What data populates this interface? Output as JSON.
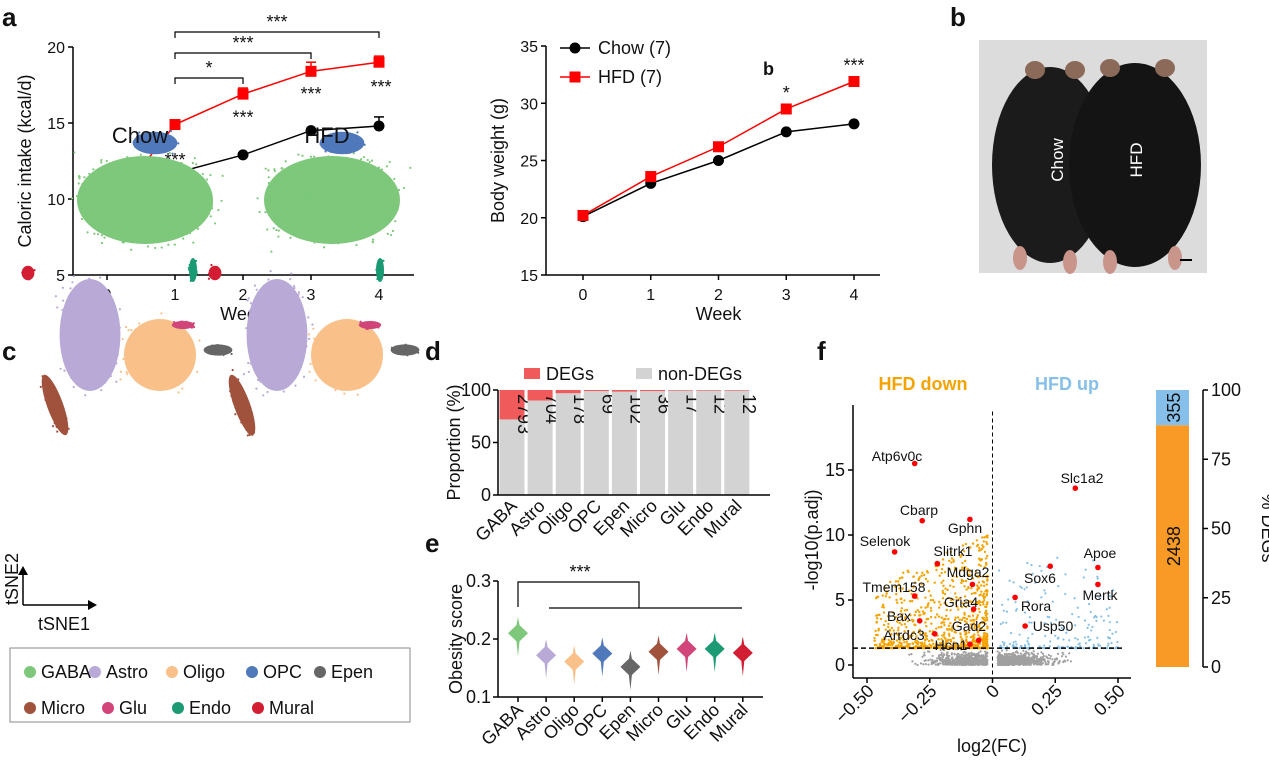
{
  "panel_labels": {
    "a": "a",
    "b": "b",
    "c": "c",
    "d": "d",
    "e": "e",
    "f": "f",
    "b_inset": "b"
  },
  "chart_data": [
    {
      "id": "caloric",
      "type": "line",
      "xlabel": "Week",
      "ylabel": "Caloric intake (kcal/d)",
      "x": [
        0,
        1,
        2,
        3,
        4
      ],
      "xticks": [
        "0",
        "1",
        "2",
        "3",
        "4"
      ],
      "ylim": [
        5,
        20
      ],
      "yticks": [
        "5",
        "10",
        "15",
        "20"
      ],
      "series": [
        {
          "name": "Chow",
          "color": "#000000",
          "marker": "circle",
          "values": [
            9.1,
            11.7,
            12.9,
            14.5,
            14.8
          ],
          "err": [
            0.1,
            0.1,
            0.1,
            0.15,
            0.6
          ]
        },
        {
          "name": "HFD",
          "color": "#ff0000",
          "marker": "square",
          "values": [
            9.2,
            14.9,
            16.9,
            18.4,
            19.0
          ],
          "err": [
            0.1,
            0.1,
            0.4,
            0.6,
            0.4
          ]
        }
      ],
      "point_stars": [
        "",
        "***",
        "***",
        "***",
        "***"
      ],
      "brackets": [
        {
          "from": 1,
          "to": 2,
          "label": "*"
        },
        {
          "from": 1,
          "to": 3,
          "label": "***"
        },
        {
          "from": 1,
          "to": 4,
          "label": "***"
        }
      ]
    },
    {
      "id": "bodyweight",
      "type": "line",
      "xlabel": "Week",
      "ylabel": "Body weight (g)",
      "x": [
        0,
        1,
        2,
        3,
        4
      ],
      "xticks": [
        "0",
        "1",
        "2",
        "3",
        "4"
      ],
      "ylim": [
        15,
        35
      ],
      "yticks": [
        "15",
        "20",
        "25",
        "30",
        "35"
      ],
      "series": [
        {
          "name": "Chow (7)",
          "color": "#000000",
          "marker": "circle",
          "values": [
            20.1,
            23.0,
            25.0,
            27.5,
            28.2
          ]
        },
        {
          "name": "HFD (7)",
          "color": "#ff0000",
          "marker": "square",
          "values": [
            20.2,
            23.6,
            26.2,
            29.5,
            31.9
          ]
        }
      ],
      "point_stars": [
        "",
        "",
        "",
        "*",
        "***"
      ],
      "legend": "top-left"
    },
    {
      "id": "proportion",
      "type": "bar",
      "stacked": true,
      "ylabel": "Proportion (%)",
      "ylim": [
        0,
        100
      ],
      "yticks": [
        "0",
        "50",
        "100"
      ],
      "categories": [
        "GABA",
        "Astro",
        "Oligo",
        "OPC",
        "Epen",
        "Micro",
        "Glu",
        "Endo",
        "Mural"
      ],
      "series": [
        {
          "name": "DEGs",
          "color": "#f05a5a",
          "values": [
            28,
            10,
            3,
            1,
            1.5,
            1,
            0.5,
            0.5,
            0.5
          ]
        },
        {
          "name": "non-DEGs",
          "color": "#d3d3d3",
          "values": [
            72,
            90,
            97,
            99,
            98.5,
            99,
            99.5,
            99.5,
            99.5
          ]
        }
      ],
      "deg_counts": [
        "2793",
        "704",
        "178",
        "69",
        "102",
        "36",
        "17",
        "12",
        "12"
      ],
      "legend": "top"
    },
    {
      "id": "obesity",
      "type": "violin",
      "ylabel": "Obesity score",
      "ylim": [
        0.1,
        0.3
      ],
      "yticks": [
        "0.1",
        "0.2",
        "0.3"
      ],
      "categories": [
        "GABA",
        "Astro",
        "Oligo",
        "OPC",
        "Epen",
        "Micro",
        "Glu",
        "Endo",
        "Mural"
      ],
      "medians": [
        0.21,
        0.172,
        0.161,
        0.175,
        0.152,
        0.178,
        0.183,
        0.183,
        0.176
      ],
      "colors": [
        "#7dc87a",
        "#b9a9d6",
        "#f9c08a",
        "#4f79bb",
        "#666666",
        "#a0523d",
        "#d1457a",
        "#1b9a74",
        "#d21e33"
      ],
      "bracket_label": "***"
    },
    {
      "id": "volcano",
      "type": "scatter",
      "xlabel": "log2(FC)",
      "ylabel": "-log10(p.adj)",
      "xlim": [
        -0.55,
        0.55
      ],
      "xticks": [
        "−0.50",
        "−0.25",
        "0",
        "0.25",
        "0.50"
      ],
      "ylim": [
        -0.5,
        19.5
      ],
      "yticks": [
        "0",
        "5",
        "10",
        "15"
      ],
      "threshold": 1.3,
      "down_label": "HFD down",
      "up_label": "HFD up",
      "down_color": "#f5a300",
      "up_color": "#86c0ea",
      "ns_color": "#a0a0a0",
      "highlight_color": "#ff0000",
      "genes": [
        {
          "name": "Atp6v0c",
          "x": -0.31,
          "y": 15.5
        },
        {
          "name": "Cbarp",
          "x": -0.28,
          "y": 11.1
        },
        {
          "name": "Gphn",
          "x": -0.09,
          "y": 11.2
        },
        {
          "name": "Selenok",
          "x": -0.39,
          "y": 8.7
        },
        {
          "name": "Slitrk1",
          "x": -0.22,
          "y": 7.8
        },
        {
          "name": "Mdga2",
          "x": -0.08,
          "y": 6.2
        },
        {
          "name": "Tmem158",
          "x": -0.31,
          "y": 5.3
        },
        {
          "name": "Gria4",
          "x": -0.075,
          "y": 4.3
        },
        {
          "name": "Bax",
          "x": -0.29,
          "y": 3.4
        },
        {
          "name": "Arrdc3",
          "x": -0.23,
          "y": 2.4
        },
        {
          "name": "Gad2",
          "x": -0.055,
          "y": 1.9
        },
        {
          "name": "Hcn1",
          "x": -0.09,
          "y": 1.6
        },
        {
          "name": "Slc1a2",
          "x": 0.33,
          "y": 13.6
        },
        {
          "name": "Sox6",
          "x": 0.23,
          "y": 7.6
        },
        {
          "name": "Apoe",
          "x": 0.42,
          "y": 7.5
        },
        {
          "name": "Mertk",
          "x": 0.42,
          "y": 6.2
        },
        {
          "name": "Rora",
          "x": 0.09,
          "y": 5.2
        },
        {
          "name": "Usp50",
          "x": 0.13,
          "y": 3.0
        }
      ]
    },
    {
      "id": "degs_bar",
      "type": "bar",
      "stacked": true,
      "ylabel": "% DEGs",
      "ylim": [
        0,
        100
      ],
      "yticks": [
        "0",
        "25",
        "50",
        "75",
        "100"
      ],
      "series": [
        {
          "name": "down",
          "value": 2438,
          "color": "#f99a26"
        },
        {
          "name": "up",
          "value": 355,
          "color": "#86c0ea"
        }
      ]
    }
  ],
  "photo": {
    "labels": [
      "Chow",
      "HFD"
    ]
  },
  "tsne": {
    "titles": [
      "Chow",
      "HFD"
    ],
    "axis_x": "tSNE1",
    "axis_y": "tSNE2"
  },
  "cell_types": [
    {
      "name": "GABA",
      "color": "#7dc87a"
    },
    {
      "name": "Astro",
      "color": "#b9a9d6"
    },
    {
      "name": "Oligo",
      "color": "#f9c08a"
    },
    {
      "name": "OPC",
      "color": "#4f79bb"
    },
    {
      "name": "Epen",
      "color": "#666666"
    },
    {
      "name": "Micro",
      "color": "#a0523d"
    },
    {
      "name": "Glu",
      "color": "#d1457a"
    },
    {
      "name": "Endo",
      "color": "#1b9a74"
    },
    {
      "name": "Mural",
      "color": "#d21e33"
    }
  ]
}
